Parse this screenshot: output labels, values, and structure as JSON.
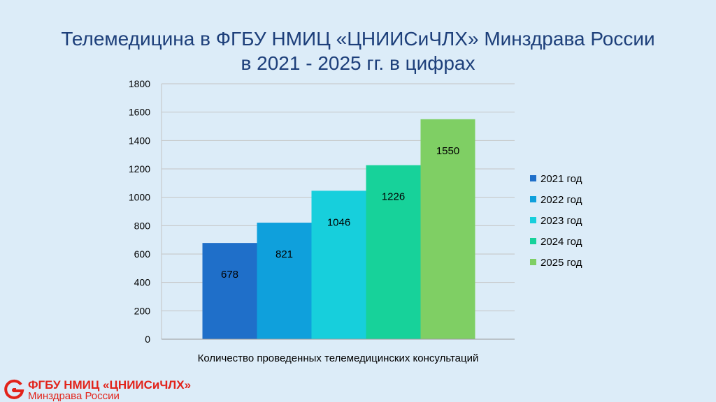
{
  "title_line1": "Телемедицина в ФГБУ НМИЦ «ЦНИИСиЧЛХ» Минздрава России",
  "title_line2": "в 2021 - 2025 гг. в цифрах",
  "chart_data": {
    "type": "bar",
    "title": "Телемедицина в ФГБУ НМИЦ «ЦНИИСиЧЛХ» Минздрава России в 2021 - 2025 гг. в цифрах",
    "categories": [
      "Количество проведенных телемедицинских консультаций"
    ],
    "series": [
      {
        "name": "2021 год",
        "values": [
          678
        ],
        "color": "#1f6fc9"
      },
      {
        "name": "2022 год",
        "values": [
          821
        ],
        "color": "#0fa0dc"
      },
      {
        "name": "2023 год",
        "values": [
          1046
        ],
        "color": "#17cfdc"
      },
      {
        "name": "2024 год",
        "values": [
          1226
        ],
        "color": "#17d29a"
      },
      {
        "name": "2025 год",
        "values": [
          1550
        ],
        "color": "#7fcf64"
      }
    ],
    "ylim": [
      0,
      1800
    ],
    "yticks": [
      0,
      200,
      400,
      600,
      800,
      1000,
      1200,
      1400,
      1600,
      1800
    ],
    "grid": true,
    "legend": "right"
  },
  "logo": {
    "name": "ФГБУ НМИЦ «ЦНИИСиЧЛХ»",
    "subtitle": "Минздрава России",
    "color": "#e2231a"
  }
}
